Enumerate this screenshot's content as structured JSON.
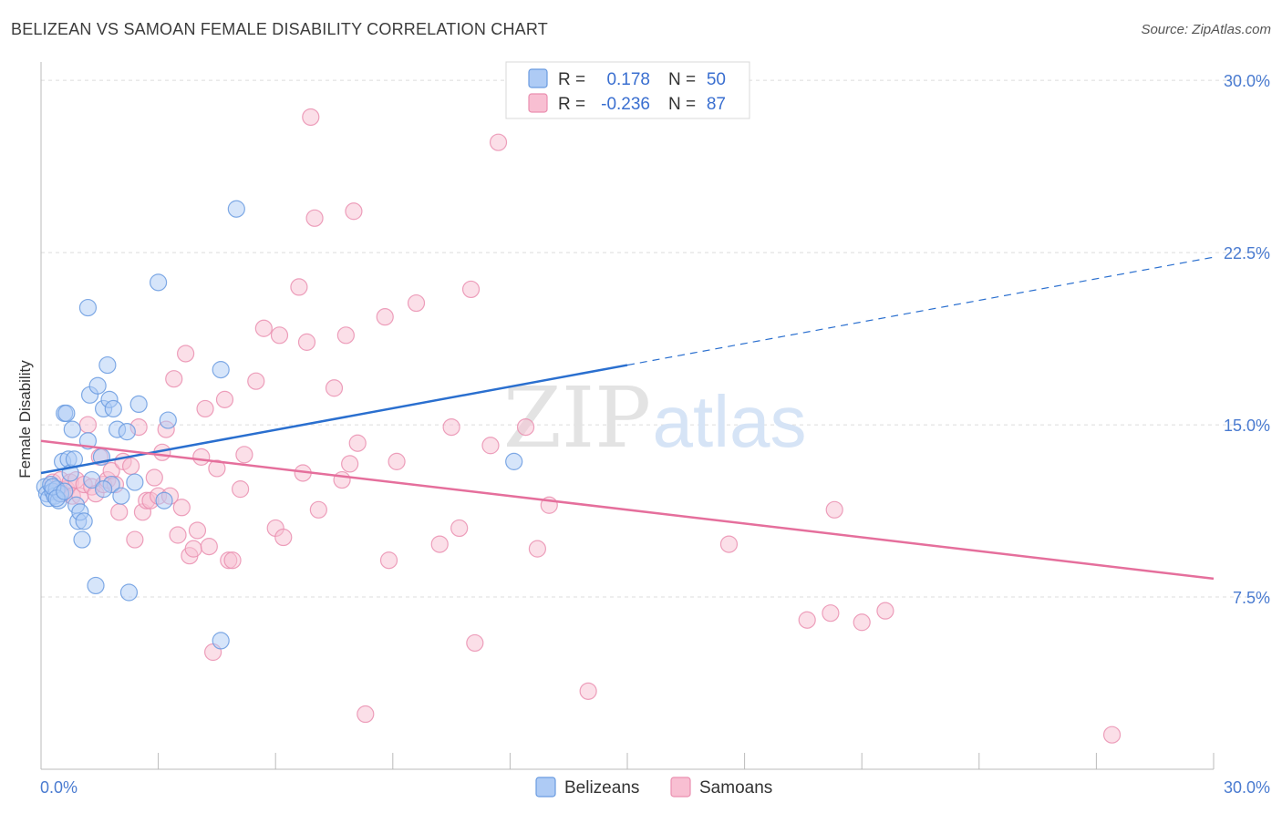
{
  "header": {
    "title": "BELIZEAN VS SAMOAN FEMALE DISABILITY CORRELATION CHART",
    "source": "Source: ZipAtlas.com"
  },
  "watermark": {
    "zip": "ZIP",
    "atlas": "atlas"
  },
  "legend": {
    "r_label": "R =",
    "n_label": "N =",
    "rows": [
      {
        "r": "0.178",
        "n": "50"
      },
      {
        "r": "-0.236",
        "n": "87"
      }
    ]
  },
  "bottom_legend": [
    "Belizeans",
    "Samoans"
  ],
  "chart_data": {
    "type": "scatter",
    "title": "BELIZEAN VS SAMOAN FEMALE DISABILITY CORRELATION CHART",
    "ylabel": "Female Disability",
    "xlabel": "",
    "xlim": [
      0,
      30
    ],
    "ylim": [
      0,
      30.8
    ],
    "x_tick_labels": [
      "0.0%",
      "30.0%"
    ],
    "y_ticks": [
      7.5,
      15.0,
      22.5,
      30.0
    ],
    "y_tick_labels": [
      "7.5%",
      "15.0%",
      "22.5%",
      "30.0%"
    ],
    "grid": true,
    "legend_position": "top-center",
    "colors": {
      "belizeans_fill": "#aecbf5",
      "belizeans_stroke": "#6a9be0",
      "belizeans_line": "#2a6fcf",
      "samoans_fill": "#f8bfd2",
      "samoans_stroke": "#ea8fb0",
      "samoans_line": "#e56f9c"
    },
    "series": [
      {
        "name": "Belizeans",
        "r": 0.178,
        "n": 50,
        "trend": {
          "x0": 0,
          "y0": 12.9,
          "x1": 15,
          "y1": 17.6,
          "x_dash_end": 30,
          "y_dash_end": 22.3
        },
        "points": [
          [
            0.1,
            12.3
          ],
          [
            0.15,
            12.0
          ],
          [
            0.2,
            11.8
          ],
          [
            0.25,
            12.4
          ],
          [
            0.3,
            12.1
          ],
          [
            0.35,
            11.9
          ],
          [
            0.4,
            12.2
          ],
          [
            0.45,
            11.7
          ],
          [
            0.5,
            12.0
          ],
          [
            0.55,
            13.4
          ],
          [
            0.6,
            15.5
          ],
          [
            0.65,
            15.5
          ],
          [
            0.7,
            13.5
          ],
          [
            0.75,
            12.9
          ],
          [
            0.8,
            14.8
          ],
          [
            0.85,
            13.5
          ],
          [
            0.9,
            11.5
          ],
          [
            0.95,
            10.8
          ],
          [
            1.0,
            11.2
          ],
          [
            1.05,
            10.0
          ],
          [
            1.1,
            10.8
          ],
          [
            1.2,
            14.3
          ],
          [
            1.25,
            16.3
          ],
          [
            1.3,
            12.6
          ],
          [
            1.4,
            8.0
          ],
          [
            1.45,
            16.7
          ],
          [
            1.55,
            13.6
          ],
          [
            1.6,
            15.7
          ],
          [
            1.7,
            17.6
          ],
          [
            1.75,
            16.1
          ],
          [
            1.8,
            12.4
          ],
          [
            1.85,
            15.7
          ],
          [
            1.95,
            14.8
          ],
          [
            2.05,
            11.9
          ],
          [
            2.2,
            14.7
          ],
          [
            2.25,
            7.7
          ],
          [
            2.4,
            12.5
          ],
          [
            2.5,
            15.9
          ],
          [
            3.0,
            21.2
          ],
          [
            3.15,
            11.7
          ],
          [
            3.25,
            15.2
          ],
          [
            4.6,
            5.6
          ],
          [
            4.6,
            17.4
          ],
          [
            5.0,
            24.4
          ],
          [
            12.1,
            13.4
          ],
          [
            0.3,
            12.3
          ],
          [
            0.4,
            11.8
          ],
          [
            1.2,
            20.1
          ],
          [
            0.6,
            12.1
          ],
          [
            1.6,
            12.2
          ]
        ]
      },
      {
        "name": "Samoans",
        "r": -0.236,
        "n": 87,
        "trend": {
          "x0": 0,
          "y0": 14.3,
          "x1": 30,
          "y1": 8.3
        },
        "points": [
          [
            0.3,
            12.5
          ],
          [
            0.4,
            12.1
          ],
          [
            0.5,
            12.6
          ],
          [
            0.55,
            12.0
          ],
          [
            0.65,
            12.2
          ],
          [
            0.75,
            12.5
          ],
          [
            0.8,
            11.9
          ],
          [
            0.9,
            12.6
          ],
          [
            1.0,
            11.9
          ],
          [
            1.1,
            12.4
          ],
          [
            1.2,
            15.0
          ],
          [
            1.3,
            12.3
          ],
          [
            1.4,
            12.0
          ],
          [
            1.5,
            13.6
          ],
          [
            1.6,
            12.4
          ],
          [
            1.7,
            12.6
          ],
          [
            1.8,
            13.0
          ],
          [
            1.9,
            12.4
          ],
          [
            2.0,
            11.2
          ],
          [
            2.1,
            13.4
          ],
          [
            2.3,
            13.2
          ],
          [
            2.4,
            10.0
          ],
          [
            2.5,
            14.9
          ],
          [
            2.6,
            11.2
          ],
          [
            2.7,
            11.7
          ],
          [
            2.8,
            11.7
          ],
          [
            2.9,
            12.7
          ],
          [
            3.0,
            11.9
          ],
          [
            3.1,
            13.8
          ],
          [
            3.2,
            14.8
          ],
          [
            3.3,
            11.9
          ],
          [
            3.4,
            17.0
          ],
          [
            3.5,
            10.2
          ],
          [
            3.6,
            11.4
          ],
          [
            3.7,
            18.1
          ],
          [
            3.8,
            9.3
          ],
          [
            3.9,
            9.6
          ],
          [
            4.0,
            10.4
          ],
          [
            4.1,
            13.6
          ],
          [
            4.2,
            15.7
          ],
          [
            4.3,
            9.7
          ],
          [
            4.4,
            5.1
          ],
          [
            4.5,
            13.1
          ],
          [
            4.7,
            16.1
          ],
          [
            4.8,
            9.1
          ],
          [
            4.9,
            9.1
          ],
          [
            5.1,
            12.2
          ],
          [
            5.2,
            13.7
          ],
          [
            5.5,
            16.9
          ],
          [
            5.7,
            19.2
          ],
          [
            6.0,
            10.5
          ],
          [
            6.1,
            18.9
          ],
          [
            6.2,
            10.1
          ],
          [
            6.6,
            21.0
          ],
          [
            6.7,
            12.9
          ],
          [
            6.8,
            18.6
          ],
          [
            6.9,
            28.4
          ],
          [
            7.0,
            24.0
          ],
          [
            7.1,
            11.3
          ],
          [
            7.5,
            16.6
          ],
          [
            7.7,
            12.6
          ],
          [
            7.8,
            18.9
          ],
          [
            7.9,
            13.3
          ],
          [
            8.0,
            24.3
          ],
          [
            8.1,
            14.2
          ],
          [
            8.3,
            2.4
          ],
          [
            8.8,
            19.7
          ],
          [
            8.9,
            9.1
          ],
          [
            9.1,
            13.4
          ],
          [
            9.6,
            20.3
          ],
          [
            10.2,
            9.8
          ],
          [
            10.5,
            14.9
          ],
          [
            10.7,
            10.5
          ],
          [
            11.0,
            20.9
          ],
          [
            11.1,
            5.5
          ],
          [
            11.5,
            14.1
          ],
          [
            11.7,
            27.3
          ],
          [
            12.4,
            14.9
          ],
          [
            12.7,
            9.6
          ],
          [
            13.0,
            11.5
          ],
          [
            14.0,
            3.4
          ],
          [
            17.6,
            9.8
          ],
          [
            19.6,
            6.5
          ],
          [
            20.2,
            6.8
          ],
          [
            20.3,
            11.3
          ],
          [
            21.0,
            6.4
          ],
          [
            21.6,
            6.9
          ],
          [
            27.4,
            1.5
          ]
        ]
      }
    ]
  }
}
